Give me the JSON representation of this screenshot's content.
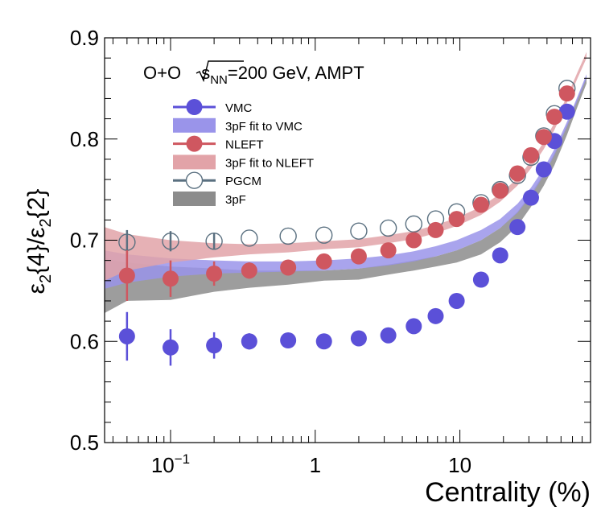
{
  "chart_data": {
    "type": "scatter",
    "title_parts": {
      "pre": "O+O ",
      "s": "s",
      "sub": "NN",
      "post": "=200 GeV, AMPT"
    },
    "xlabel": "Centrality (%)",
    "ylabel": {
      "eps": "ε",
      "sub2": "2",
      "four": "{4}/",
      "eps2": "ε",
      "sub2b": "2",
      "two": "{2}"
    },
    "xscale": "log",
    "xlim": [
      0.035,
      80
    ],
    "ylim": [
      0.5,
      0.9
    ],
    "y_ticks": [
      {
        "v": 0.5,
        "label": "0.5"
      },
      {
        "v": 0.6,
        "label": "0.6"
      },
      {
        "v": 0.7,
        "label": "0.7"
      },
      {
        "v": 0.8,
        "label": "0.8"
      },
      {
        "v": 0.9,
        "label": "0.9"
      }
    ],
    "x_ticks": [
      {
        "v": 0.1,
        "label_base": "10",
        "label_exp": "−1"
      },
      {
        "v": 1,
        "label_base": "1",
        "label_exp": ""
      },
      {
        "v": 10,
        "label_base": "10",
        "label_exp": ""
      }
    ],
    "legend": [
      {
        "key": "vmc",
        "label": "VMC",
        "style": "marker-line",
        "color": "#5b50d8"
      },
      {
        "key": "vmc_fit",
        "label": "3pF fit to VMC",
        "style": "band",
        "color": "#9a94ea"
      },
      {
        "key": "nleft",
        "label": "NLEFT",
        "style": "marker-line",
        "color": "#cf5760"
      },
      {
        "key": "nleft_fit",
        "label": "3pF fit to NLEFT",
        "style": "band",
        "color": "#e2a3a8"
      },
      {
        "key": "pgcm",
        "label": "PGCM",
        "style": "open-marker-line",
        "color": "#5a7080"
      },
      {
        "key": "threepf",
        "label": "3pF",
        "style": "band",
        "color": "#8c8c8c"
      }
    ],
    "series": [
      {
        "name": "VMC",
        "color": "#5b50d8",
        "x": [
          0.05,
          0.1,
          0.2,
          0.35,
          0.65,
          1.15,
          2.0,
          3.2,
          4.8,
          6.8,
          9.5,
          14,
          19,
          25,
          31,
          38,
          45,
          55
        ],
        "y": [
          0.605,
          0.594,
          0.596,
          0.6,
          0.601,
          0.6,
          0.603,
          0.606,
          0.615,
          0.625,
          0.64,
          0.661,
          0.685,
          0.713,
          0.742,
          0.77,
          0.798,
          0.827
        ],
        "err": [
          0.024,
          0.018,
          0.013,
          0.008,
          0.005,
          0.004,
          0.004,
          0.003,
          0.003,
          0.003,
          0.003,
          0.003,
          0.003,
          0.003,
          0.003,
          0.003,
          0.003,
          0.003
        ]
      },
      {
        "name": "NLEFT",
        "color": "#cf5760",
        "x": [
          0.05,
          0.1,
          0.2,
          0.35,
          0.65,
          1.15,
          2.0,
          3.2,
          4.8,
          6.8,
          9.5,
          14,
          19,
          25,
          31,
          38,
          45,
          55
        ],
        "y": [
          0.665,
          0.662,
          0.667,
          0.67,
          0.673,
          0.679,
          0.684,
          0.69,
          0.7,
          0.71,
          0.721,
          0.735,
          0.749,
          0.766,
          0.784,
          0.802,
          0.822,
          0.845
        ],
        "err": [
          0.025,
          0.018,
          0.012,
          0.008,
          0.005,
          0.004,
          0.004,
          0.003,
          0.003,
          0.003,
          0.003,
          0.003,
          0.003,
          0.003,
          0.003,
          0.003,
          0.003,
          0.003
        ]
      },
      {
        "name": "PGCM",
        "color": "#5a7080",
        "x": [
          0.05,
          0.1,
          0.2,
          0.35,
          0.65,
          1.15,
          2.0,
          3.2,
          4.8,
          6.8,
          9.5,
          14,
          19,
          25,
          31,
          38,
          45,
          55
        ],
        "y": [
          0.698,
          0.699,
          0.699,
          0.702,
          0.704,
          0.705,
          0.709,
          0.712,
          0.716,
          0.721,
          0.728,
          0.737,
          0.75,
          0.764,
          0.782,
          0.803,
          0.825,
          0.85
        ],
        "err": [
          0.012,
          0.01,
          0.008,
          0.005,
          0.004,
          0.003,
          0.003,
          0.003,
          0.003,
          0.003,
          0.003,
          0.003,
          0.003,
          0.003,
          0.003,
          0.003,
          0.003,
          0.003
        ]
      }
    ],
    "bands": [
      {
        "name": "3pF",
        "color": "#8c8c8c",
        "x": [
          0.035,
          0.05,
          0.1,
          0.2,
          0.35,
          0.65,
          1.15,
          2.0,
          3.2,
          4.8,
          6.8,
          9.5,
          14,
          19,
          25,
          31,
          38,
          45,
          55,
          65,
          75
        ],
        "lo": [
          0.628,
          0.64,
          0.641,
          0.649,
          0.653,
          0.656,
          0.66,
          0.661,
          0.666,
          0.67,
          0.674,
          0.678,
          0.686,
          0.698,
          0.714,
          0.733,
          0.754,
          0.774,
          0.804,
          0.832,
          0.855
        ],
        "hi": [
          0.682,
          0.678,
          0.674,
          0.672,
          0.67,
          0.67,
          0.67,
          0.672,
          0.676,
          0.68,
          0.684,
          0.69,
          0.7,
          0.712,
          0.728,
          0.746,
          0.766,
          0.786,
          0.814,
          0.84,
          0.862
        ]
      },
      {
        "name": "3pF fit to VMC",
        "color": "#9a94ea",
        "x": [
          0.035,
          0.05,
          0.1,
          0.2,
          0.35,
          0.65,
          1.15,
          2.0,
          3.2,
          4.8,
          6.8,
          9.5,
          14,
          19,
          25,
          31,
          38,
          45,
          55,
          65,
          75
        ],
        "lo": [
          0.652,
          0.658,
          0.664,
          0.667,
          0.668,
          0.669,
          0.67,
          0.672,
          0.675,
          0.679,
          0.684,
          0.69,
          0.7,
          0.712,
          0.727,
          0.744,
          0.764,
          0.784,
          0.812,
          0.838,
          0.86
        ],
        "hi": [
          0.69,
          0.686,
          0.682,
          0.68,
          0.679,
          0.679,
          0.68,
          0.682,
          0.685,
          0.689,
          0.694,
          0.7,
          0.71,
          0.721,
          0.736,
          0.752,
          0.771,
          0.79,
          0.817,
          0.842,
          0.864
        ]
      },
      {
        "name": "3pF fit to NLEFT",
        "color": "#e2a3a8",
        "x": [
          0.035,
          0.05,
          0.1,
          0.2,
          0.35,
          0.65,
          1.15,
          2.0,
          3.2,
          4.8,
          6.8,
          9.5,
          14,
          19,
          25,
          31,
          38,
          45,
          55,
          65,
          75
        ],
        "lo": [
          0.66,
          0.67,
          0.678,
          0.683,
          0.686,
          0.688,
          0.691,
          0.693,
          0.697,
          0.701,
          0.707,
          0.714,
          0.725,
          0.738,
          0.754,
          0.771,
          0.79,
          0.809,
          0.836,
          0.86,
          0.88
        ],
        "hi": [
          0.713,
          0.706,
          0.7,
          0.697,
          0.696,
          0.697,
          0.699,
          0.701,
          0.705,
          0.709,
          0.715,
          0.722,
          0.733,
          0.746,
          0.761,
          0.778,
          0.797,
          0.816,
          0.842,
          0.866,
          0.886
        ]
      }
    ]
  }
}
